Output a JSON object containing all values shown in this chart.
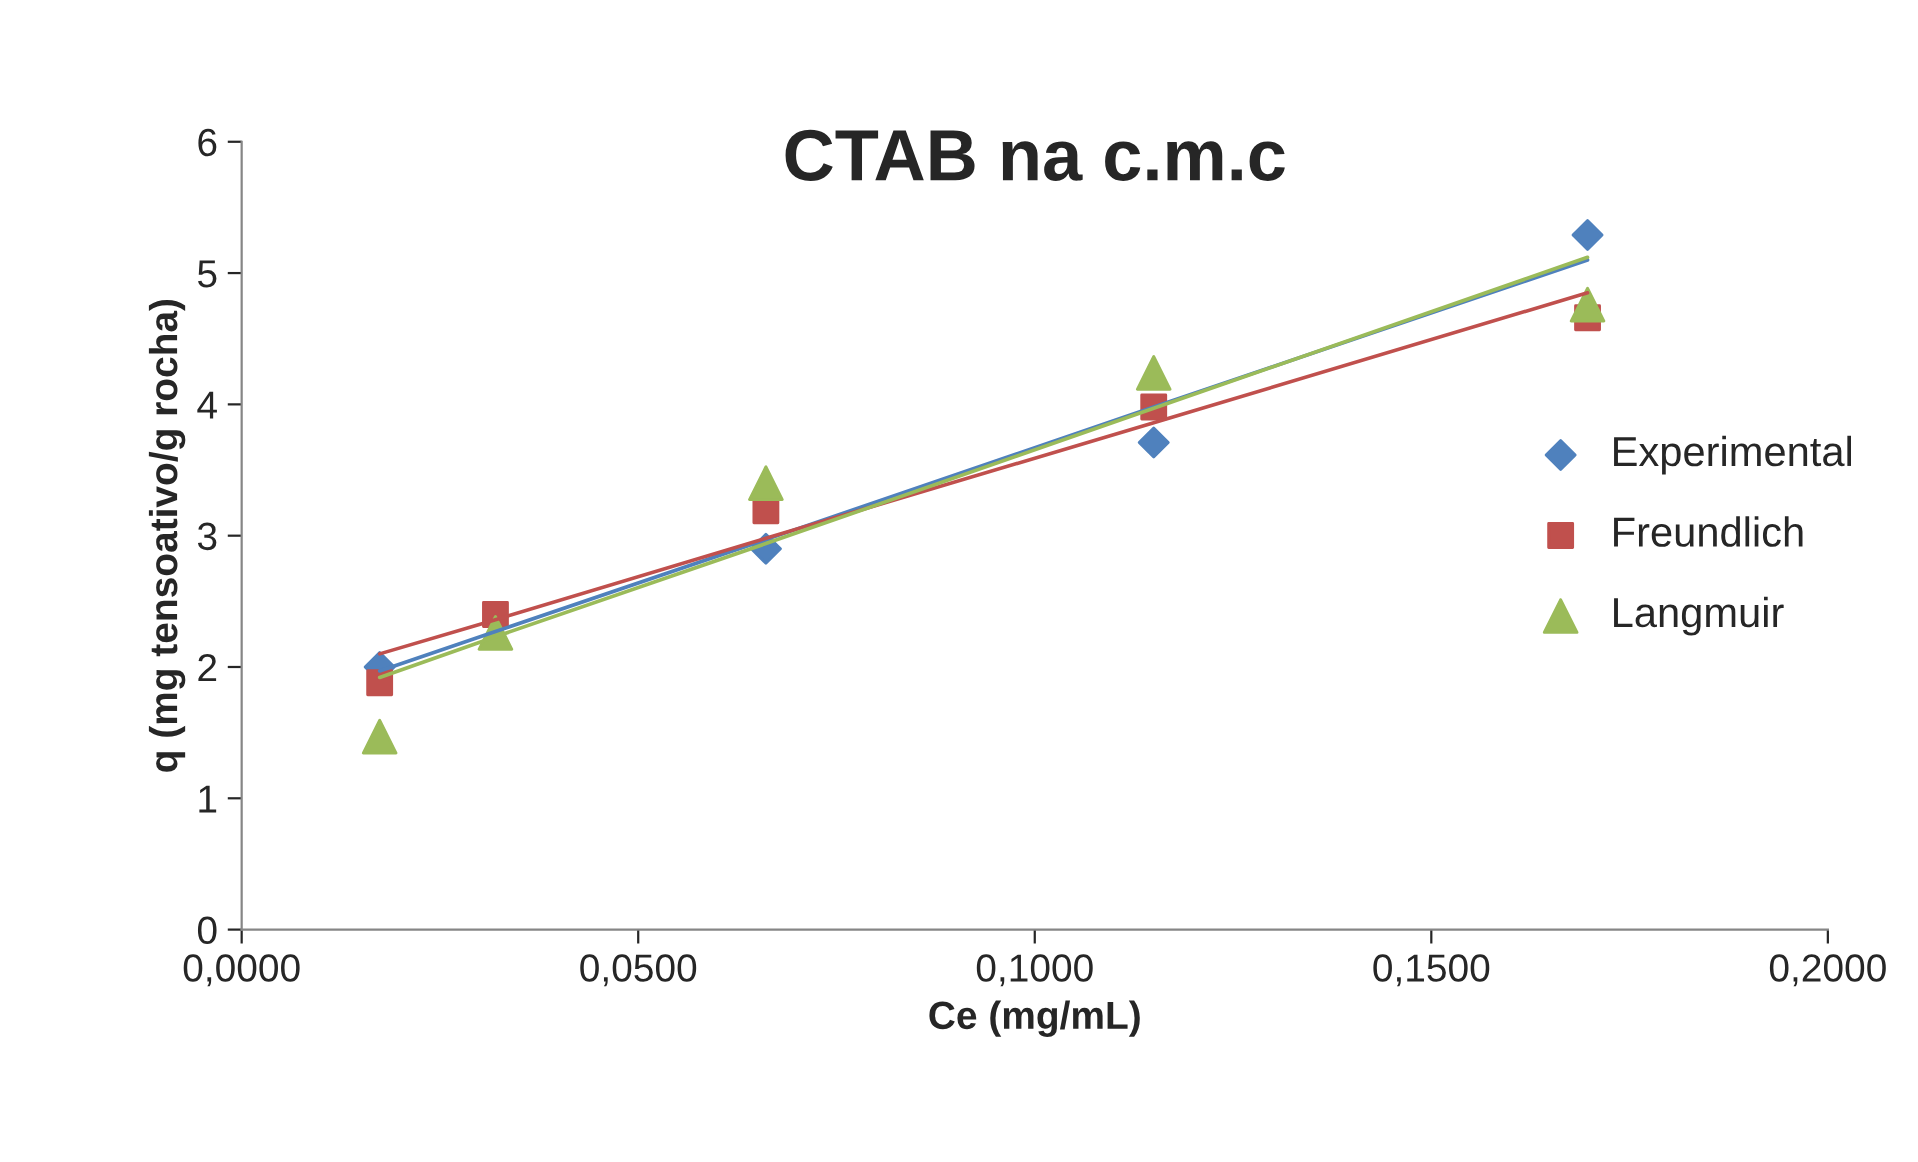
{
  "chart_data": {
    "type": "scatter",
    "title": "CTAB na c.m.c",
    "xlabel": "Ce (mg/mL)",
    "ylabel": "q (mg tensoativo/g rocha)",
    "x": [
      0.0174,
      0.032,
      0.0661,
      0.115,
      0.1697
    ],
    "series": [
      {
        "name": "Experimental",
        "color": "#4f81bd",
        "marker": "diamond",
        "values": [
          2.0,
          null,
          2.9,
          3.71,
          5.29
        ]
      },
      {
        "name": "Freundlich",
        "color": "#c0504d",
        "marker": "square",
        "values": [
          1.88,
          2.4,
          3.19,
          3.98,
          4.66
        ]
      },
      {
        "name": "Langmuir",
        "color": "#9bbb59",
        "marker": "triangle",
        "values": [
          1.47,
          2.26,
          3.4,
          4.24,
          4.76
        ]
      },
      {
        "type": "line",
        "color": "#4f81bd",
        "marker": "none",
        "values": [
          1.97,
          2.27,
          2.97,
          3.98,
          5.1
        ]
      },
      {
        "type": "line",
        "color": "#c0504d",
        "marker": "none",
        "values": [
          2.1,
          2.36,
          2.98,
          3.86,
          4.85
        ]
      },
      {
        "type": "line",
        "color": "#9bbb59",
        "marker": "none",
        "values": [
          1.92,
          2.23,
          2.94,
          3.97,
          5.12
        ]
      }
    ],
    "xlim": [
      0,
      0.2
    ],
    "xticks": [
      {
        "value": 0,
        "label": "0,0000"
      },
      {
        "value": 0.05,
        "label": "0,0500"
      },
      {
        "value": 0.1,
        "label": "0,1000"
      },
      {
        "value": 0.15,
        "label": "0,1500"
      },
      {
        "value": 0.2,
        "label": "0,2000"
      }
    ],
    "ylim": [
      0,
      6
    ],
    "yticks": [
      0,
      1,
      2,
      3,
      4,
      5,
      6
    ],
    "grid": false,
    "legend": "right"
  }
}
